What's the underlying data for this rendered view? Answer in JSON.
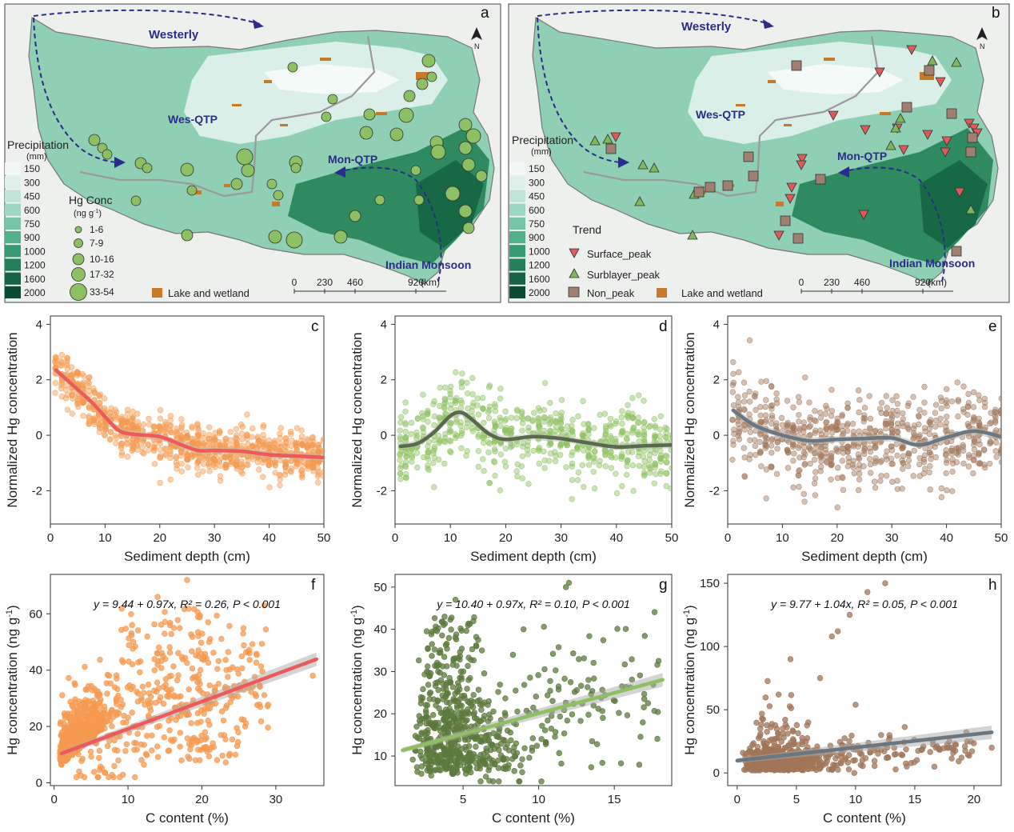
{
  "panels": {
    "a": {
      "letter": "a"
    },
    "b": {
      "letter": "b"
    },
    "c": {
      "letter": "c"
    },
    "d": {
      "letter": "d"
    },
    "e": {
      "letter": "e"
    },
    "f": {
      "letter": "f"
    },
    "g": {
      "letter": "g"
    },
    "h": {
      "letter": "h"
    }
  },
  "maps": {
    "labels": {
      "westerly": "Westerly",
      "wes_qtp": "Wes-QTP",
      "mon_qtp": "Mon-QTP",
      "indian_monsoon": "Indian Monsoon",
      "north": "N"
    },
    "precip_legend": {
      "title": "Precipitation",
      "unit": "(mm)",
      "classes": [
        "150",
        "300",
        "450",
        "600",
        "750",
        "900",
        "1000",
        "1200",
        "1600",
        "2000"
      ],
      "colors": [
        "#f1f7f5",
        "#dcefe9",
        "#c0e4d8",
        "#9dd6c2",
        "#77c4a7",
        "#52b08b",
        "#379a72",
        "#24805a",
        "#166445",
        "#0d4a33"
      ]
    },
    "hg_legend": {
      "title": "Hg Conc",
      "unit_prefix": "(ng g",
      "unit_sup": "-1",
      "unit_suffix": ")",
      "classes": [
        "1-6",
        "7-9",
        "10-16",
        "17-32",
        "33-54"
      ]
    },
    "trend_legend": {
      "title": "Trend",
      "items": [
        "Surface_peak",
        "Surblayer_peak",
        "Non_peak"
      ]
    },
    "lake_label": "Lake and wetland",
    "scale_ticks": [
      "0",
      "230",
      "460",
      "920"
    ],
    "scale_unit": "(km)",
    "colors": {
      "site_fill": "#8dc063",
      "surface": "#e05a5a",
      "subsurface": "#7db85b",
      "nonpeak": "#a08070",
      "lake": "#c87a2a",
      "arrow": "#2c2c8c"
    }
  },
  "common": {
    "depth_xlabel": "Sediment depth (cm)",
    "norm_ylabel": "Normalized Hg concentration",
    "c_xlabel": "C content (%)",
    "hg_ylabel_prefix": "Hg concentration (ng g",
    "hg_ylabel_sup": "-1",
    "hg_ylabel_suffix": ")"
  },
  "chart_data": [
    {
      "panel": "c",
      "type": "scatter",
      "xlabel": "Sediment depth (cm)",
      "ylabel": "Normalized Hg concentration",
      "xlim": [
        0,
        50
      ],
      "ylim": [
        -3.2,
        4.3
      ],
      "xticks": [
        0,
        10,
        20,
        30,
        40,
        50
      ],
      "yticks": [
        -2,
        0,
        2,
        4
      ],
      "point_color": "#f59a50",
      "line_color": "#ef5a55",
      "trend_x": [
        1,
        5,
        8,
        11,
        13,
        16,
        20,
        24,
        27,
        30,
        35,
        40,
        45,
        50
      ],
      "trend_y": [
        2.35,
        1.65,
        1.1,
        0.45,
        0.12,
        0.02,
        -0.05,
        -0.35,
        -0.55,
        -0.55,
        -0.58,
        -0.7,
        -0.75,
        -0.8
      ],
      "spread": 0.55,
      "n_points": 900
    },
    {
      "panel": "d",
      "type": "scatter",
      "xlabel": "Sediment depth (cm)",
      "ylabel": "Normalized Hg concentration",
      "xlim": [
        0,
        50
      ],
      "ylim": [
        -3.2,
        4.3
      ],
      "xticks": [
        0,
        10,
        20,
        30,
        40,
        50
      ],
      "yticks": [
        -2,
        0,
        2,
        4
      ],
      "point_color": "#8cc060",
      "line_color": "#566b4b",
      "trend_x": [
        1,
        4,
        7,
        10,
        12,
        14,
        17,
        20,
        25,
        30,
        35,
        40,
        45,
        50
      ],
      "trend_y": [
        -0.4,
        -0.3,
        0.1,
        0.7,
        0.82,
        0.55,
        0.05,
        -0.15,
        -0.05,
        -0.12,
        -0.28,
        -0.42,
        -0.38,
        -0.35
      ],
      "spread": 0.9,
      "n_points": 650
    },
    {
      "panel": "e",
      "type": "scatter",
      "xlabel": "Sediment depth (cm)",
      "ylabel": "Normalized Hg concentration",
      "xlim": [
        0,
        50
      ],
      "ylim": [
        -3.2,
        4.3
      ],
      "xticks": [
        0,
        10,
        20,
        30,
        40,
        50
      ],
      "yticks": [
        -2,
        0,
        2,
        4
      ],
      "point_color": "#a07558",
      "line_color": "#6a7680",
      "trend_x": [
        1,
        5,
        10,
        15,
        20,
        25,
        30,
        35,
        40,
        45,
        50
      ],
      "trend_y": [
        0.9,
        0.35,
        0.0,
        -0.2,
        -0.15,
        -0.12,
        -0.1,
        -0.35,
        -0.08,
        0.15,
        -0.05
      ],
      "spread": 1.1,
      "n_points": 700
    },
    {
      "panel": "f",
      "type": "scatter",
      "xlabel": "C content (%)",
      "ylabel": "Hg concentration (ng g-1)",
      "xlim": [
        -0.5,
        36.5
      ],
      "ylim": [
        -1,
        74
      ],
      "xticks": [
        0,
        10,
        20,
        30
      ],
      "yticks": [
        0,
        20,
        40,
        60
      ],
      "point_color": "#f59a50",
      "line_color": "#ee5a5a",
      "regression": {
        "intercept": 9.44,
        "slope": 0.97,
        "x_from": 1,
        "x_to": 35.5
      },
      "equation": "y = 9.44 + 0.97x,  R² = 0.26,  P < 0.001"
    },
    {
      "panel": "g",
      "type": "scatter",
      "xlabel": "C content (%)",
      "ylabel": "Hg concentration (ng g-1)",
      "xlim": [
        0.5,
        18.8
      ],
      "ylim": [
        3,
        53
      ],
      "xticks": [
        5,
        10,
        15
      ],
      "yticks": [
        10,
        20,
        30,
        40,
        50
      ],
      "point_color": "#5c7a3e",
      "line_color": "#8cc060",
      "regression": {
        "intercept": 10.4,
        "slope": 0.97,
        "x_from": 1,
        "x_to": 18.2
      },
      "equation": "y = 10.40 + 0.97x,  R² = 0.10,  P < 0.001"
    },
    {
      "panel": "h",
      "type": "scatter",
      "xlabel": "C content (%)",
      "ylabel": "Hg concentration (ng g-1)",
      "xlim": [
        -0.8,
        22.3
      ],
      "ylim": [
        -10,
        157
      ],
      "xticks": [
        0,
        5,
        10,
        15,
        20
      ],
      "yticks": [
        0,
        50,
        100,
        150
      ],
      "point_color": "#a07558",
      "line_color": "#6a7680",
      "regression": {
        "intercept": 9.77,
        "slope": 1.04,
        "x_from": 0,
        "x_to": 21.5
      },
      "equation": "y = 9.77 + 1.04x,  R² = 0.05,  P < 0.001"
    }
  ]
}
